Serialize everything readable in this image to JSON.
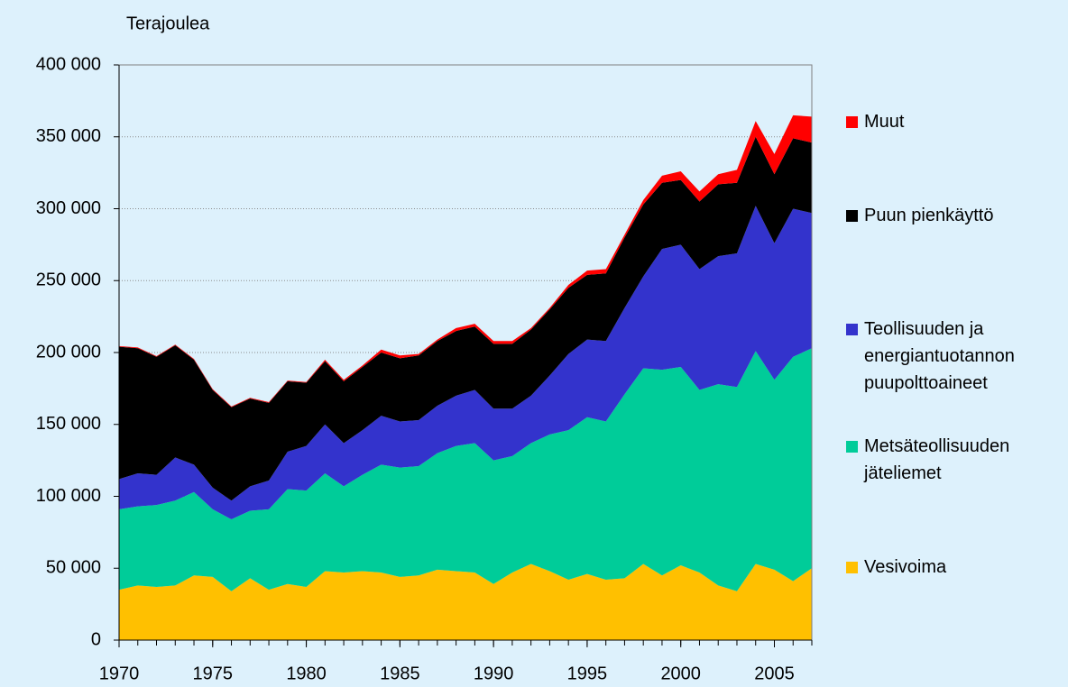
{
  "chart_data": {
    "type": "stacked-area",
    "y_axis_label": "Terajoulea",
    "x": [
      1970,
      1971,
      1972,
      1973,
      1974,
      1975,
      1976,
      1977,
      1978,
      1979,
      1980,
      1981,
      1982,
      1983,
      1984,
      1985,
      1986,
      1987,
      1988,
      1989,
      1990,
      1991,
      1992,
      1993,
      1994,
      1995,
      1996,
      1997,
      1998,
      1999,
      2000,
      2001,
      2002,
      2003,
      2004,
      2005,
      2006,
      2007
    ],
    "xlim": [
      1970,
      2007
    ],
    "xticks": [
      1970,
      1975,
      1980,
      1985,
      1990,
      1995,
      2000,
      2005
    ],
    "ylim": [
      0,
      400000
    ],
    "yticks": [
      0,
      {
        "value": 50000,
        "label": "50 000"
      },
      {
        "value": 100000,
        "label": "100 000"
      },
      {
        "value": 150000,
        "label": "150 000"
      },
      {
        "value": 200000,
        "label": "200 000"
      },
      {
        "value": 250000,
        "label": "250 000"
      },
      {
        "value": 300000,
        "label": "300 000"
      },
      {
        "value": 350000,
        "label": "350 000"
      },
      {
        "value": 400000,
        "label": "400 000"
      }
    ],
    "grid": true,
    "series": [
      {
        "name": "Vesivoima",
        "color": "#ffc000",
        "values": [
          35000,
          38000,
          37000,
          38000,
          45000,
          44000,
          34000,
          43000,
          35000,
          39000,
          37000,
          48000,
          47000,
          48000,
          47000,
          44000,
          45000,
          49000,
          48000,
          47000,
          39000,
          47000,
          53000,
          48000,
          42000,
          46000,
          42000,
          43000,
          53000,
          45000,
          52000,
          47000,
          38000,
          34000,
          53000,
          49000,
          41000,
          50000
        ]
      },
      {
        "name": "Metsäteollisuuden jäteliemet",
        "color": "#00cc99",
        "values": [
          56000,
          55000,
          57000,
          59000,
          58000,
          47000,
          50000,
          47000,
          56000,
          66000,
          67000,
          68000,
          60000,
          67000,
          75000,
          76000,
          76000,
          81000,
          87000,
          90000,
          86000,
          81000,
          84000,
          95000,
          104000,
          109000,
          110000,
          128000,
          136000,
          143000,
          138000,
          127000,
          140000,
          142000,
          148000,
          132000,
          156000,
          153000
        ]
      },
      {
        "name": "Teollisuuden ja energiantuotannon puupolttoaineet",
        "color": "#3333cc",
        "values": [
          21000,
          23000,
          21000,
          30000,
          19000,
          15000,
          13000,
          17000,
          20000,
          26000,
          31000,
          34000,
          30000,
          31000,
          34000,
          32000,
          32000,
          33000,
          35000,
          37000,
          36000,
          33000,
          33000,
          41000,
          53000,
          54000,
          56000,
          60000,
          64000,
          84000,
          85000,
          84000,
          89000,
          93000,
          101000,
          95000,
          103000,
          94000
        ]
      },
      {
        "name": "Puun pienkäyttö",
        "color": "#000000",
        "values": [
          92000,
          87000,
          82000,
          78000,
          73000,
          68000,
          65000,
          61000,
          54000,
          49000,
          44000,
          44000,
          43000,
          44000,
          44000,
          44000,
          45000,
          45000,
          45000,
          44000,
          45000,
          45000,
          46000,
          46000,
          46000,
          45000,
          47000,
          49000,
          50000,
          46000,
          45000,
          47000,
          50000,
          49000,
          48000,
          48000,
          49000,
          49000
        ]
      },
      {
        "name": "Muut",
        "color": "#ff0000",
        "values": [
          500,
          500,
          500,
          500,
          500,
          500,
          500,
          500,
          500,
          500,
          500,
          1000,
          1000,
          1000,
          2000,
          2000,
          1000,
          1000,
          2000,
          2000,
          2000,
          2000,
          1000,
          1000,
          2000,
          3000,
          3000,
          2000,
          3000,
          5000,
          6000,
          7000,
          7000,
          9000,
          11000,
          14000,
          16000,
          18000
        ]
      }
    ]
  }
}
